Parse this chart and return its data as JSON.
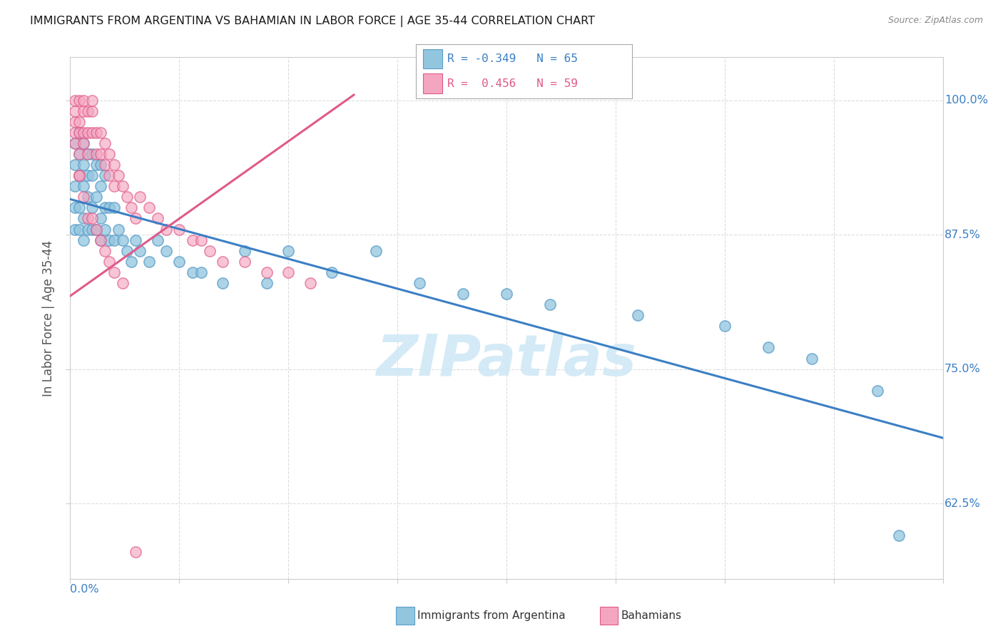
{
  "title": "IMMIGRANTS FROM ARGENTINA VS BAHAMIAN IN LABOR FORCE | AGE 35-44 CORRELATION CHART",
  "source": "Source: ZipAtlas.com",
  "ylabel": "In Labor Force | Age 35-44",
  "ytick_labels": [
    "62.5%",
    "75.0%",
    "87.5%",
    "100.0%"
  ],
  "ytick_values": [
    0.625,
    0.75,
    0.875,
    1.0
  ],
  "xmin": 0.0,
  "xmax": 0.2,
  "ymin": 0.555,
  "ymax": 1.04,
  "legend_R1": "R = -0.349",
  "legend_N1": "N = 65",
  "legend_R2": "R =  0.456",
  "legend_N2": "N = 59",
  "blue_color": "#92c5de",
  "pink_color": "#f4a6c0",
  "blue_scatter_edge": "#5b9ec9",
  "pink_scatter_edge": "#e05a8a",
  "blue_line_color": "#3b7fc4",
  "pink_line_color": "#e05a8a",
  "watermark_color": "#cde7f5",
  "blue_scatter_x": [
    0.001,
    0.001,
    0.001,
    0.001,
    0.001,
    0.002,
    0.002,
    0.002,
    0.002,
    0.002,
    0.003,
    0.003,
    0.003,
    0.003,
    0.003,
    0.004,
    0.004,
    0.004,
    0.004,
    0.005,
    0.005,
    0.005,
    0.005,
    0.006,
    0.006,
    0.006,
    0.007,
    0.007,
    0.007,
    0.007,
    0.008,
    0.008,
    0.008,
    0.009,
    0.009,
    0.01,
    0.01,
    0.011,
    0.012,
    0.013,
    0.014,
    0.015,
    0.016,
    0.018,
    0.02,
    0.022,
    0.025,
    0.028,
    0.03,
    0.035,
    0.04,
    0.045,
    0.05,
    0.06,
    0.07,
    0.08,
    0.09,
    0.1,
    0.11,
    0.13,
    0.15,
    0.16,
    0.17,
    0.185,
    0.19
  ],
  "blue_scatter_y": [
    0.88,
    0.9,
    0.92,
    0.94,
    0.96,
    0.88,
    0.9,
    0.93,
    0.95,
    0.97,
    0.87,
    0.89,
    0.92,
    0.94,
    0.96,
    0.88,
    0.91,
    0.93,
    0.95,
    0.88,
    0.9,
    0.93,
    0.95,
    0.88,
    0.91,
    0.94,
    0.87,
    0.89,
    0.92,
    0.94,
    0.88,
    0.9,
    0.93,
    0.87,
    0.9,
    0.87,
    0.9,
    0.88,
    0.87,
    0.86,
    0.85,
    0.87,
    0.86,
    0.85,
    0.87,
    0.86,
    0.85,
    0.84,
    0.84,
    0.83,
    0.86,
    0.83,
    0.86,
    0.84,
    0.86,
    0.83,
    0.82,
    0.82,
    0.81,
    0.8,
    0.79,
    0.77,
    0.76,
    0.73,
    0.595
  ],
  "pink_scatter_x": [
    0.001,
    0.001,
    0.001,
    0.001,
    0.001,
    0.002,
    0.002,
    0.002,
    0.002,
    0.002,
    0.003,
    0.003,
    0.003,
    0.003,
    0.004,
    0.004,
    0.004,
    0.005,
    0.005,
    0.005,
    0.006,
    0.006,
    0.007,
    0.007,
    0.008,
    0.008,
    0.009,
    0.009,
    0.01,
    0.01,
    0.011,
    0.012,
    0.013,
    0.014,
    0.015,
    0.016,
    0.018,
    0.02,
    0.022,
    0.025,
    0.028,
    0.03,
    0.032,
    0.035,
    0.04,
    0.045,
    0.05,
    0.055,
    0.002,
    0.003,
    0.004,
    0.005,
    0.006,
    0.007,
    0.008,
    0.009,
    0.01,
    0.012,
    0.015
  ],
  "pink_scatter_y": [
    0.97,
    0.99,
    1.0,
    0.96,
    0.98,
    0.98,
    1.0,
    0.97,
    0.95,
    0.93,
    0.97,
    0.99,
    1.0,
    0.96,
    0.97,
    0.99,
    0.95,
    0.97,
    0.99,
    1.0,
    0.97,
    0.95,
    0.97,
    0.95,
    0.96,
    0.94,
    0.95,
    0.93,
    0.94,
    0.92,
    0.93,
    0.92,
    0.91,
    0.9,
    0.89,
    0.91,
    0.9,
    0.89,
    0.88,
    0.88,
    0.87,
    0.87,
    0.86,
    0.85,
    0.85,
    0.84,
    0.84,
    0.83,
    0.93,
    0.91,
    0.89,
    0.89,
    0.88,
    0.87,
    0.86,
    0.85,
    0.84,
    0.83,
    0.58
  ],
  "blue_line_x": [
    0.0,
    0.2
  ],
  "blue_line_y": [
    0.908,
    0.686
  ],
  "pink_line_x": [
    0.0,
    0.065
  ],
  "pink_line_y": [
    0.818,
    1.005
  ],
  "background_color": "#ffffff",
  "grid_color": "#dddddd",
  "axis_color": "#cccccc",
  "label_color": "#3b7fc4",
  "title_color": "#1a1a1a",
  "ylabel_color": "#555555"
}
